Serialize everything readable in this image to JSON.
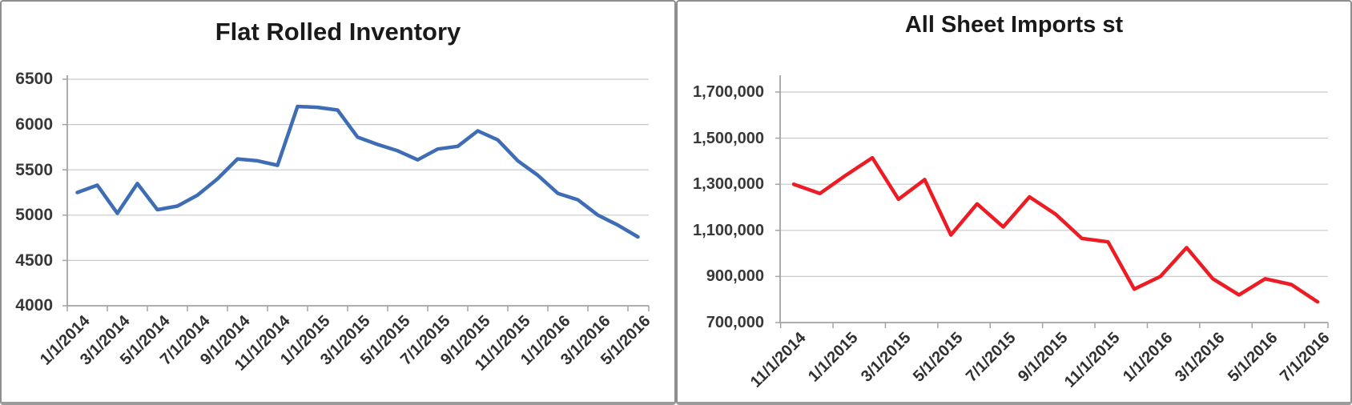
{
  "chart_data": [
    {
      "type": "line",
      "title": "Flat Rolled Inventory",
      "series_color": "#3E6CB5",
      "legend": "none",
      "grid": true,
      "xlabel": "",
      "ylabel": "",
      "ylim": [
        4000,
        6500
      ],
      "y_step": 500,
      "y_tick_labels": [
        "6500",
        "6000",
        "5500",
        "5000",
        "4500",
        "4000"
      ],
      "x_tick_labels": [
        "1/1/2014",
        "3/1/2014",
        "5/1/2014",
        "7/1/2014",
        "9/1/2014",
        "11/1/2014",
        "1/1/2015",
        "3/1/2015",
        "5/1/2015",
        "7/1/2015",
        "9/1/2015",
        "11/1/2015",
        "1/1/2016",
        "3/1/2016",
        "5/1/2016"
      ],
      "x": [
        "1/1/2014",
        "2/1/2014",
        "3/1/2014",
        "4/1/2014",
        "5/1/2014",
        "6/1/2014",
        "7/1/2014",
        "8/1/2014",
        "9/1/2014",
        "10/1/2014",
        "11/1/2014",
        "12/1/2014",
        "1/1/2015",
        "2/1/2015",
        "3/1/2015",
        "4/1/2015",
        "5/1/2015",
        "6/1/2015",
        "7/1/2015",
        "8/1/2015",
        "9/1/2015",
        "10/1/2015",
        "11/1/2015",
        "12/1/2015",
        "1/1/2016",
        "2/1/2016",
        "3/1/2016",
        "4/1/2016",
        "5/1/2016"
      ],
      "values": [
        5250,
        5330,
        5020,
        5350,
        5060,
        5100,
        5220,
        5400,
        5620,
        5600,
        5550,
        6200,
        6190,
        6160,
        5860,
        5780,
        5710,
        5610,
        5730,
        5760,
        5930,
        5830,
        5600,
        5440,
        5240,
        5170,
        5000,
        4890,
        4760
      ]
    },
    {
      "type": "line",
      "title": "All Sheet Imports st",
      "series_color": "#ED1C24",
      "legend": "none",
      "grid": true,
      "xlabel": "",
      "ylabel": "",
      "ylim": [
        700000,
        1700000
      ],
      "y_step": 200000,
      "y_tick_labels": [
        "1,700,000",
        "1,500,000",
        "1,300,000",
        "1,100,000",
        "900,000",
        "700,000"
      ],
      "x_tick_labels": [
        "11/1/2014",
        "1/1/2015",
        "3/1/2015",
        "5/1/2015",
        "7/1/2015",
        "9/1/2015",
        "11/1/2015",
        "1/1/2016",
        "3/1/2016",
        "5/1/2016",
        "7/1/2016"
      ],
      "x": [
        "11/1/2014",
        "12/1/2014",
        "1/1/2015",
        "2/1/2015",
        "3/1/2015",
        "4/1/2015",
        "5/1/2015",
        "6/1/2015",
        "7/1/2015",
        "8/1/2015",
        "9/1/2015",
        "10/1/2015",
        "11/1/2015",
        "12/1/2015",
        "1/1/2016",
        "2/1/2016",
        "3/1/2016",
        "4/1/2016",
        "5/1/2016",
        "6/1/2016",
        "7/1/2016"
      ],
      "values": [
        1300000,
        1260000,
        1340000,
        1415000,
        1235000,
        1320000,
        1080000,
        1215000,
        1115000,
        1245000,
        1170000,
        1065000,
        1050000,
        845000,
        900000,
        1025000,
        890000,
        820000,
        890000,
        865000,
        790000
      ]
    }
  ]
}
